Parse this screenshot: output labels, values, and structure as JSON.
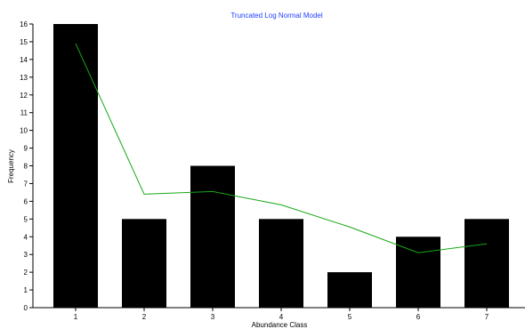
{
  "chart_data": {
    "type": "bar",
    "title": "Truncated Log Normal Model",
    "xlabel": "Abundance Class",
    "ylabel": "Frequency",
    "categories": [
      "1",
      "2",
      "3",
      "4",
      "5",
      "6",
      "7"
    ],
    "series": [
      {
        "values": [
          16,
          5,
          8,
          5,
          2,
          4,
          5
        ]
      }
    ],
    "fit_line": {
      "values": [
        14.9,
        6.4,
        6.55,
        5.8,
        4.55,
        3.1,
        3.6
      ]
    },
    "ylim": [
      0,
      16
    ],
    "yticks": [
      0,
      1,
      2,
      3,
      4,
      5,
      6,
      7,
      8,
      9,
      10,
      11,
      12,
      13,
      14,
      15,
      16
    ],
    "grid": false,
    "colors": {
      "bars": "#000000",
      "fit_line": "#16a816",
      "title": "#1f3fff"
    }
  }
}
